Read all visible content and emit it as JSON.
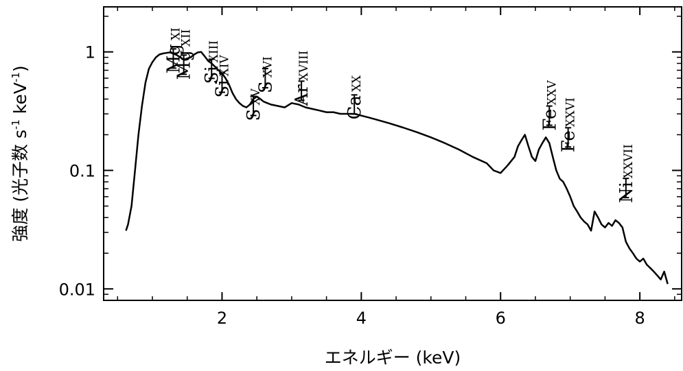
{
  "chart_data": {
    "type": "line",
    "xlabel": "エネルギー (keV)",
    "ylabel_main": "強度 (光子数 s",
    "ylabel_exp1": "-1",
    "ylabel_mid": " keV",
    "ylabel_exp2": "-1",
    "ylabel_end": ")",
    "xlim": [
      0.3,
      8.6
    ],
    "ylim": [
      0.008,
      2.4
    ],
    "yscale": "log",
    "grid": false,
    "xticks": [
      2,
      4,
      6,
      8
    ],
    "xtick_labels": [
      "2",
      "4",
      "6",
      "8"
    ],
    "yticks": [
      0.01,
      0.1,
      1
    ],
    "ytick_labels": [
      "0.01",
      "0.1",
      "1"
    ],
    "series": [
      {
        "x": [
          0.62,
          0.65,
          0.7,
          0.75,
          0.8,
          0.85,
          0.9,
          0.95,
          1.0,
          1.05,
          1.1,
          1.15,
          1.2,
          1.25,
          1.3,
          1.35,
          1.4,
          1.45,
          1.5,
          1.55,
          1.6,
          1.65,
          1.7,
          1.75,
          1.8,
          1.85,
          1.9,
          1.95,
          2.0,
          2.05,
          2.1,
          2.15,
          2.2,
          2.25,
          2.3,
          2.35,
          2.4,
          2.45,
          2.5,
          2.55,
          2.6,
          2.65,
          2.7,
          2.8,
          2.9,
          3.0,
          3.1,
          3.2,
          3.3,
          3.4,
          3.5,
          3.6,
          3.7,
          3.8,
          3.9,
          4.0,
          4.1,
          4.2,
          4.4,
          4.6,
          4.8,
          5.0,
          5.2,
          5.4,
          5.6,
          5.8,
          5.9,
          6.0,
          6.1,
          6.2,
          6.25,
          6.3,
          6.35,
          6.4,
          6.45,
          6.5,
          6.55,
          6.6,
          6.65,
          6.7,
          6.75,
          6.8,
          6.85,
          6.9,
          6.95,
          7.0,
          7.05,
          7.1,
          7.15,
          7.2,
          7.25,
          7.3,
          7.35,
          7.4,
          7.45,
          7.5,
          7.55,
          7.6,
          7.65,
          7.7,
          7.75,
          7.8,
          7.85,
          7.9,
          7.95,
          8.0,
          8.05,
          8.1,
          8.15,
          8.2,
          8.25,
          8.3,
          8.35,
          8.4
        ],
        "values": [
          0.031,
          0.035,
          0.05,
          0.1,
          0.2,
          0.35,
          0.55,
          0.72,
          0.82,
          0.9,
          0.95,
          0.97,
          0.98,
          0.99,
          0.97,
          0.94,
          0.9,
          0.86,
          0.88,
          0.9,
          0.95,
          0.99,
          1.0,
          0.92,
          0.84,
          0.8,
          0.75,
          0.7,
          0.66,
          0.6,
          0.53,
          0.45,
          0.4,
          0.37,
          0.35,
          0.34,
          0.36,
          0.4,
          0.42,
          0.4,
          0.38,
          0.37,
          0.36,
          0.35,
          0.34,
          0.37,
          0.36,
          0.34,
          0.33,
          0.32,
          0.31,
          0.31,
          0.3,
          0.3,
          0.3,
          0.29,
          0.28,
          0.27,
          0.25,
          0.23,
          0.21,
          0.19,
          0.17,
          0.15,
          0.13,
          0.115,
          0.1,
          0.095,
          0.11,
          0.13,
          0.16,
          0.18,
          0.2,
          0.16,
          0.13,
          0.12,
          0.15,
          0.17,
          0.19,
          0.17,
          0.13,
          0.1,
          0.085,
          0.08,
          0.07,
          0.06,
          0.05,
          0.045,
          0.04,
          0.037,
          0.035,
          0.031,
          0.045,
          0.04,
          0.035,
          0.033,
          0.036,
          0.034,
          0.038,
          0.036,
          0.033,
          0.025,
          0.022,
          0.02,
          0.018,
          0.017,
          0.018,
          0.016,
          0.015,
          0.014,
          0.013,
          0.012,
          0.014,
          0.011
        ]
      }
    ],
    "annotations": [
      {
        "name": "Mg",
        "ion": "XI",
        "bar_x": 1.3,
        "bar_y": 0.88
      },
      {
        "name": "Mg",
        "ion": "XII",
        "bar_x": 1.45,
        "bar_y": 0.78
      },
      {
        "name": "Si",
        "ion": "XIII",
        "bar_x": 1.85,
        "bar_y": 0.72
      },
      {
        "name": "Si",
        "ion": "XIV",
        "bar_x": 2.0,
        "bar_y": 0.55
      },
      {
        "name": "S",
        "ion": "XV",
        "bar_x": 2.45,
        "bar_y": 0.35
      },
      {
        "name": "S",
        "ion": "XVI",
        "bar_x": 2.62,
        "bar_y": 0.6
      },
      {
        "name": "Ar",
        "ion": "XVIII",
        "bar_x": 3.14,
        "bar_y": 0.47
      },
      {
        "name": "Ca",
        "ion": "XX",
        "bar_x": 3.9,
        "bar_y": 0.36
      },
      {
        "name": "Fe",
        "ion": "XXV",
        "bar_x": 6.7,
        "bar_y": 0.29
      },
      {
        "name": "Fe",
        "ion": "XXVI",
        "bar_x": 6.97,
        "bar_y": 0.19
      },
      {
        "name": "Ni",
        "ion": "XXVII",
        "bar_x": 7.8,
        "bar_y": 0.071
      }
    ]
  }
}
